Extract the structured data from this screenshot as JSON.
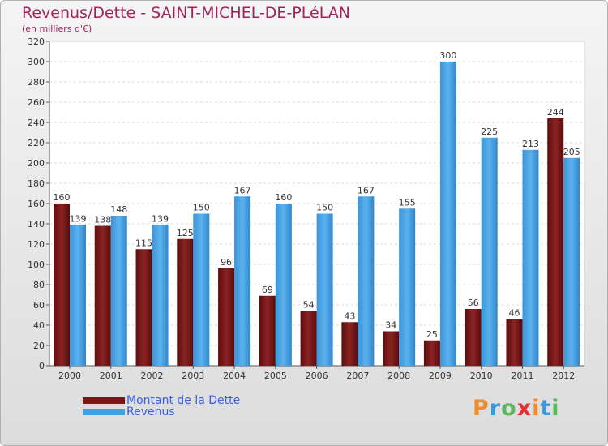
{
  "chart_data": {
    "type": "bar",
    "title": "Revenus/Dette - SAINT-MICHEL-DE-PLéLAN",
    "subtitle": "(en milliers d'€)",
    "categories": [
      "2000",
      "2001",
      "2002",
      "2003",
      "2004",
      "2005",
      "2006",
      "2007",
      "2008",
      "2009",
      "2010",
      "2011",
      "2012"
    ],
    "series": [
      {
        "name": "Montant de la Dette",
        "color": "#7a1818",
        "values": [
          160,
          138,
          115,
          125,
          96,
          69,
          54,
          43,
          34,
          25,
          56,
          46,
          244
        ]
      },
      {
        "name": "Revenus",
        "color": "#3f9fe3",
        "values": [
          139,
          148,
          139,
          150,
          167,
          160,
          150,
          167,
          155,
          300,
          225,
          213,
          205
        ]
      }
    ],
    "ylim": [
      0,
      320
    ],
    "yticks": [
      0,
      20,
      40,
      60,
      80,
      100,
      120,
      140,
      160,
      180,
      200,
      220,
      240,
      260,
      280,
      300,
      320
    ],
    "grid": true,
    "legend": "bottom-left"
  },
  "logo": {
    "text": "Proxiti",
    "letters": [
      "P",
      "r",
      "o",
      "x",
      "i",
      "t",
      "i"
    ],
    "colors": [
      "#f28c28",
      "#3a9ad9",
      "#5cb85c",
      "#e03030",
      "#f28c28",
      "#3a9ad9",
      "#5cb85c"
    ]
  }
}
